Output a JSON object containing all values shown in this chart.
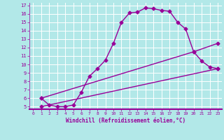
{
  "xlabel": "Windchill (Refroidissement éolien,°C)",
  "bg_color": "#b2e8e8",
  "line_color": "#990099",
  "grid_color": "#ffffff",
  "xlim": [
    -0.5,
    23.5
  ],
  "ylim": [
    4.7,
    17.3
  ],
  "yticks": [
    5,
    6,
    7,
    8,
    9,
    10,
    11,
    12,
    13,
    14,
    15,
    16,
    17
  ],
  "xticks": [
    0,
    1,
    2,
    3,
    4,
    5,
    6,
    7,
    8,
    9,
    10,
    11,
    12,
    13,
    14,
    15,
    16,
    17,
    18,
    19,
    20,
    21,
    22,
    23
  ],
  "line1_x": [
    1,
    2,
    3,
    4,
    5,
    6,
    7,
    8,
    9,
    10,
    11,
    12,
    13,
    14,
    15,
    16,
    17,
    18,
    19,
    20,
    21,
    22,
    23
  ],
  "line1_y": [
    6.0,
    5.2,
    5.0,
    5.0,
    5.2,
    6.7,
    8.6,
    9.5,
    10.5,
    12.5,
    15.0,
    16.1,
    16.2,
    16.7,
    16.6,
    16.4,
    16.3,
    15.0,
    14.2,
    11.5,
    10.4,
    9.7,
    9.5
  ],
  "line2_x": [
    1,
    20,
    23
  ],
  "line2_y": [
    6.0,
    11.5,
    12.5
  ],
  "line3_x": [
    1,
    23
  ],
  "line3_y": [
    5.0,
    9.5
  ],
  "marker": "D",
  "markersize": 2.5,
  "linewidth": 1.0
}
